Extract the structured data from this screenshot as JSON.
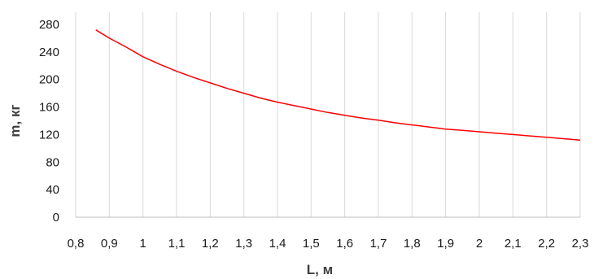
{
  "chart_data": {
    "type": "line",
    "title": "",
    "xlabel": "L, м",
    "ylabel": "m, кг",
    "xlim": [
      0.8,
      2.3
    ],
    "ylim": [
      0,
      280
    ],
    "x_ticks": [
      "0,8",
      "0,9",
      "1",
      "1,1",
      "1,2",
      "1,3",
      "1,4",
      "1,5",
      "1,6",
      "1,7",
      "1,8",
      "1,9",
      "2",
      "2,1",
      "2,2",
      "2,3"
    ],
    "y_ticks": [
      "0",
      "40",
      "80",
      "120",
      "160",
      "200",
      "240",
      "280"
    ],
    "grid": "vertical",
    "legend": "none",
    "series": [
      {
        "color": "#ff0000",
        "x": [
          0.86,
          0.9,
          0.95,
          1.0,
          1.05,
          1.1,
          1.15,
          1.2,
          1.25,
          1.3,
          1.35,
          1.4,
          1.45,
          1.5,
          1.55,
          1.6,
          1.65,
          1.7,
          1.75,
          1.8,
          1.85,
          1.9,
          1.95,
          2.0,
          2.05,
          2.1,
          2.15,
          2.2,
          2.25,
          2.3
        ],
        "y": [
          272,
          260,
          247,
          233,
          222,
          212,
          203,
          195,
          187,
          180,
          173,
          167,
          162,
          157,
          152,
          148,
          144,
          141,
          137,
          134,
          131,
          128,
          126,
          124,
          122,
          120,
          118,
          116,
          114,
          112
        ]
      }
    ]
  }
}
